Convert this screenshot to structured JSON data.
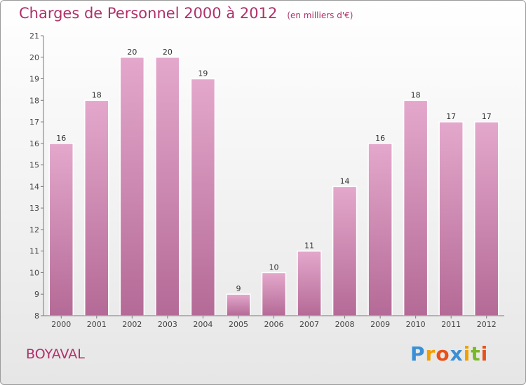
{
  "header": {
    "title": "Charges de Personnel 2000 à 2012",
    "subtitle": "(en milliers d'€)"
  },
  "footer": {
    "commune": "BOYAVAL",
    "brand_letters": [
      "P",
      "r",
      "o",
      "x",
      "i",
      "t",
      "i"
    ],
    "brand_colors": [
      "#3a8fd6",
      "#f0a000",
      "#e8501a",
      "#3a8fd6",
      "#f0a000",
      "#7ab828",
      "#e8501a"
    ]
  },
  "chart_data": {
    "type": "bar",
    "title": "Charges de Personnel 2000 à 2012",
    "subtitle": "(en milliers d'€)",
    "categories": [
      "2000",
      "2001",
      "2002",
      "2003",
      "2004",
      "2005",
      "2006",
      "2007",
      "2008",
      "2009",
      "2010",
      "2011",
      "2012"
    ],
    "values": [
      16,
      18,
      20,
      20,
      19,
      9,
      10,
      11,
      14,
      16,
      18,
      17,
      17
    ],
    "ylim": [
      8,
      21
    ],
    "yticks": [
      8,
      9,
      10,
      11,
      12,
      13,
      14,
      15,
      16,
      17,
      18,
      19,
      20,
      21
    ],
    "grid": false,
    "bar_color_top": "#e4a8cc",
    "bar_color_bottom": "#b46a96"
  }
}
